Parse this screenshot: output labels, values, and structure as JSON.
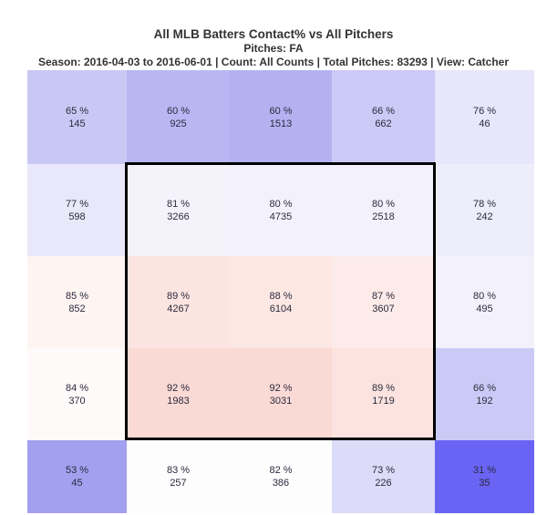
{
  "header": {
    "title": "All MLB Batters Contact% vs All Pitchers",
    "subtitle": "Pitches: FA",
    "meta": "Season: 2016-04-03 to 2016-06-01 | Count: All Counts | Total Pitches: 83293 | View: Catcher"
  },
  "chart_data": {
    "type": "heatmap",
    "rows": 5,
    "cols": 5,
    "value_label": "Contact %",
    "count_label": "Pitch Count",
    "view": "Catcher",
    "total_pitches": 83293,
    "strike_zone": {
      "row_start": 1,
      "row_end": 3,
      "col_start": 1,
      "col_end": 3,
      "border_color": "#000000"
    },
    "cells": [
      [
        {
          "pct": 65,
          "count": 145,
          "color": "#c9c8f5"
        },
        {
          "pct": 60,
          "count": 925,
          "color": "#b9b6f3"
        },
        {
          "pct": 60,
          "count": 1513,
          "color": "#b4b1f1"
        },
        {
          "pct": 66,
          "count": 662,
          "color": "#cbc9f6"
        },
        {
          "pct": 76,
          "count": 46,
          "color": "#e7e6fa"
        }
      ],
      [
        {
          "pct": 77,
          "count": 598,
          "color": "#e9e8fa"
        },
        {
          "pct": 81,
          "count": 3266,
          "color": "#f4f3fc"
        },
        {
          "pct": 80,
          "count": 4735,
          "color": "#f3f2fc"
        },
        {
          "pct": 80,
          "count": 2518,
          "color": "#f3f2fc"
        },
        {
          "pct": 78,
          "count": 242,
          "color": "#eeedfb"
        }
      ],
      [
        {
          "pct": 85,
          "count": 852,
          "color": "#fef4f2"
        },
        {
          "pct": 89,
          "count": 4267,
          "color": "#fce4e0"
        },
        {
          "pct": 88,
          "count": 6104,
          "color": "#fce7e3"
        },
        {
          "pct": 87,
          "count": 3607,
          "color": "#fcebe8"
        },
        {
          "pct": 80,
          "count": 495,
          "color": "#f3f2fc"
        }
      ],
      [
        {
          "pct": 84,
          "count": 370,
          "color": "#fefafa"
        },
        {
          "pct": 92,
          "count": 1983,
          "color": "#fbd9d5"
        },
        {
          "pct": 92,
          "count": 3031,
          "color": "#fbd9d5"
        },
        {
          "pct": 89,
          "count": 1719,
          "color": "#fce3df"
        },
        {
          "pct": 66,
          "count": 192,
          "color": "#cbcaf6"
        }
      ],
      [
        {
          "pct": 53,
          "count": 45,
          "color": "#a3a0f0"
        },
        {
          "pct": 83,
          "count": 257,
          "color": "#fefdfd"
        },
        {
          "pct": 82,
          "count": 386,
          "color": "#fdfdfe"
        },
        {
          "pct": 73,
          "count": 226,
          "color": "#dcdbf8"
        },
        {
          "pct": 31,
          "count": 35,
          "color": "#6964f3"
        }
      ]
    ]
  }
}
